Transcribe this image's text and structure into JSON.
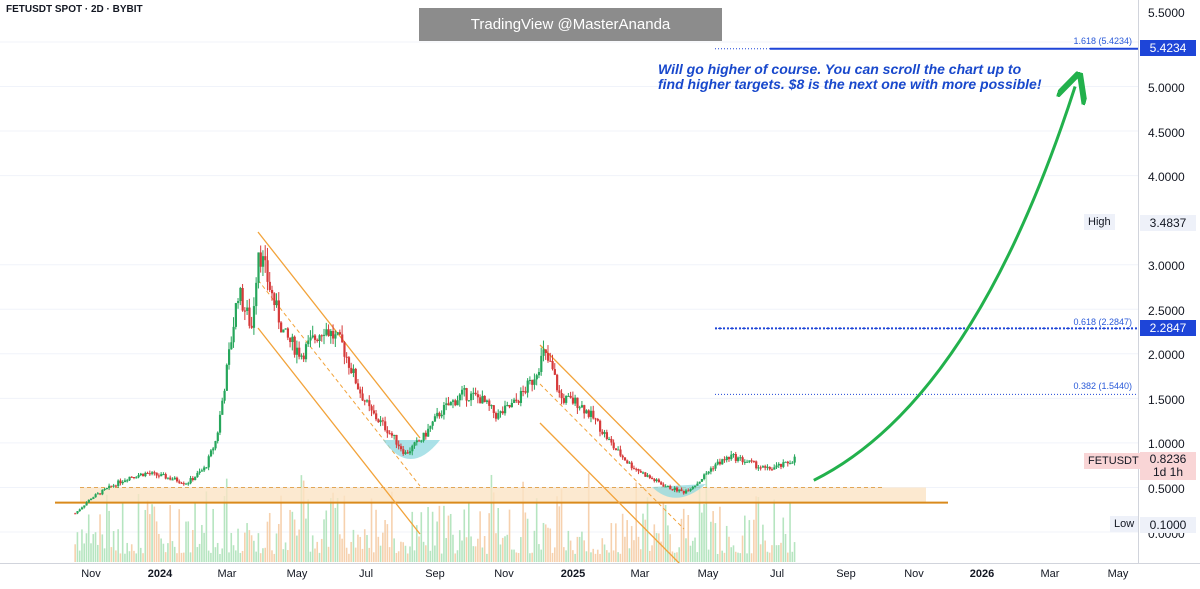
{
  "header": {
    "symbol": "FETUSDT SPOT · 2D · BYBIT",
    "watermark": "TradingView @MasterAnanda"
  },
  "annotation": {
    "line1": "Will go higher of course. You can scroll the chart up to",
    "line2": "find higher targets. $8 is the next one with more possible!"
  },
  "price_axis": {
    "ticks": [
      "5.5000",
      "5.0000",
      "4.5000",
      "4.0000",
      "3.0000",
      "2.5000",
      "2.0000",
      "1.5000",
      "1.0000",
      "0.5000",
      "0.0000"
    ],
    "tags": {
      "fib_1618": "5.4234",
      "high_value": "3.4837",
      "fib_0618": "2.2847",
      "current_price": "0.8236",
      "countdown": "1d 1h",
      "low_value": "0.1000"
    },
    "badges": {
      "high": "High",
      "symbol": "FETUSDT",
      "low": "Low"
    }
  },
  "fib_labels": {
    "f1618": "1.618 (5.4234)",
    "f0618": "0.618 (2.2847)",
    "f0382": "0.382 (1.5440)"
  },
  "time_axis": {
    "ticks": [
      "Nov",
      "2024",
      "Mar",
      "May",
      "Jul",
      "Sep",
      "Nov",
      "2025",
      "Mar",
      "May",
      "Jul",
      "Sep",
      "Nov",
      "2026",
      "Mar",
      "May"
    ]
  },
  "colors": {
    "up": "#26a65b",
    "down": "#d63a3a",
    "fib_blue": "#1e45d8",
    "arrow_green": "#22b14c",
    "support_orange": "#d98a1c",
    "channel_orange": "#f2a33a",
    "zone_fill": "#fbe3c4",
    "cup_fill": "#8fd8e0"
  },
  "chart_data": {
    "type": "candlestick",
    "symbol": "FETUSDT",
    "timeframe": "2D",
    "exchange": "BYBIT",
    "x_range": [
      "2023-10",
      "2026-05"
    ],
    "ylim": [
      0.0,
      5.5
    ],
    "y_ticks": [
      0.0,
      0.5,
      1.0,
      1.5,
      2.0,
      2.5,
      3.0,
      4.0,
      4.5,
      5.0,
      5.5
    ],
    "close_path": [
      {
        "date": "2023-10-18",
        "close": 0.21
      },
      {
        "date": "2023-11-01",
        "close": 0.38
      },
      {
        "date": "2023-11-20",
        "close": 0.52
      },
      {
        "date": "2023-12-05",
        "close": 0.62
      },
      {
        "date": "2023-12-20",
        "close": 0.66
      },
      {
        "date": "2024-01-05",
        "close": 0.62
      },
      {
        "date": "2024-01-25",
        "close": 0.55
      },
      {
        "date": "2024-02-10",
        "close": 0.72
      },
      {
        "date": "2024-02-20",
        "close": 1.05
      },
      {
        "date": "2024-03-01",
        "close": 1.9
      },
      {
        "date": "2024-03-10",
        "close": 2.7
      },
      {
        "date": "2024-03-22",
        "close": 2.3
      },
      {
        "date": "2024-03-28",
        "close": 3.2
      },
      {
        "date": "2024-04-08",
        "close": 2.7
      },
      {
        "date": "2024-04-20",
        "close": 2.2
      },
      {
        "date": "2024-05-05",
        "close": 2.0
      },
      {
        "date": "2024-05-25",
        "close": 2.3
      },
      {
        "date": "2024-06-10",
        "close": 2.1
      },
      {
        "date": "2024-06-25",
        "close": 1.6
      },
      {
        "date": "2024-07-05",
        "close": 1.35
      },
      {
        "date": "2024-07-20",
        "close": 1.15
      },
      {
        "date": "2024-08-05",
        "close": 0.88
      },
      {
        "date": "2024-08-20",
        "close": 1.05
      },
      {
        "date": "2024-09-05",
        "close": 1.35
      },
      {
        "date": "2024-09-25",
        "close": 1.55
      },
      {
        "date": "2024-10-10",
        "close": 1.5
      },
      {
        "date": "2024-10-25",
        "close": 1.3
      },
      {
        "date": "2024-11-10",
        "close": 1.45
      },
      {
        "date": "2024-11-25",
        "close": 1.7
      },
      {
        "date": "2024-12-05",
        "close": 2.0
      },
      {
        "date": "2024-12-12",
        "close": 1.85
      },
      {
        "date": "2024-12-20",
        "close": 1.5
      },
      {
        "date": "2025-01-05",
        "close": 1.45
      },
      {
        "date": "2025-01-20",
        "close": 1.25
      },
      {
        "date": "2025-02-05",
        "close": 0.95
      },
      {
        "date": "2025-02-20",
        "close": 0.75
      },
      {
        "date": "2025-03-10",
        "close": 0.6
      },
      {
        "date": "2025-03-25",
        "close": 0.5
      },
      {
        "date": "2025-04-08",
        "close": 0.45
      },
      {
        "date": "2025-04-20",
        "close": 0.55
      },
      {
        "date": "2025-05-05",
        "close": 0.75
      },
      {
        "date": "2025-05-20",
        "close": 0.85
      },
      {
        "date": "2025-06-05",
        "close": 0.78
      },
      {
        "date": "2025-06-20",
        "close": 0.7
      },
      {
        "date": "2025-07-05",
        "close": 0.75
      },
      {
        "date": "2025-07-15",
        "close": 0.8236
      }
    ],
    "fibonacci_levels": [
      {
        "label": "1.618 (5.4234)",
        "value": 5.4234
      },
      {
        "label": "0.618 (2.2847)",
        "value": 2.2847
      },
      {
        "label": "0.382 (1.5440)",
        "value": 1.544
      }
    ],
    "high": 3.4837,
    "low": 0.1,
    "last_price": 0.8236,
    "support_zone": [
      0.33,
      0.5
    ],
    "projection_arrow": {
      "from": {
        "date": "2025-08-01",
        "close": 0.58
      },
      "to": {
        "date": "2026-03-20",
        "close": 5.0
      }
    }
  }
}
